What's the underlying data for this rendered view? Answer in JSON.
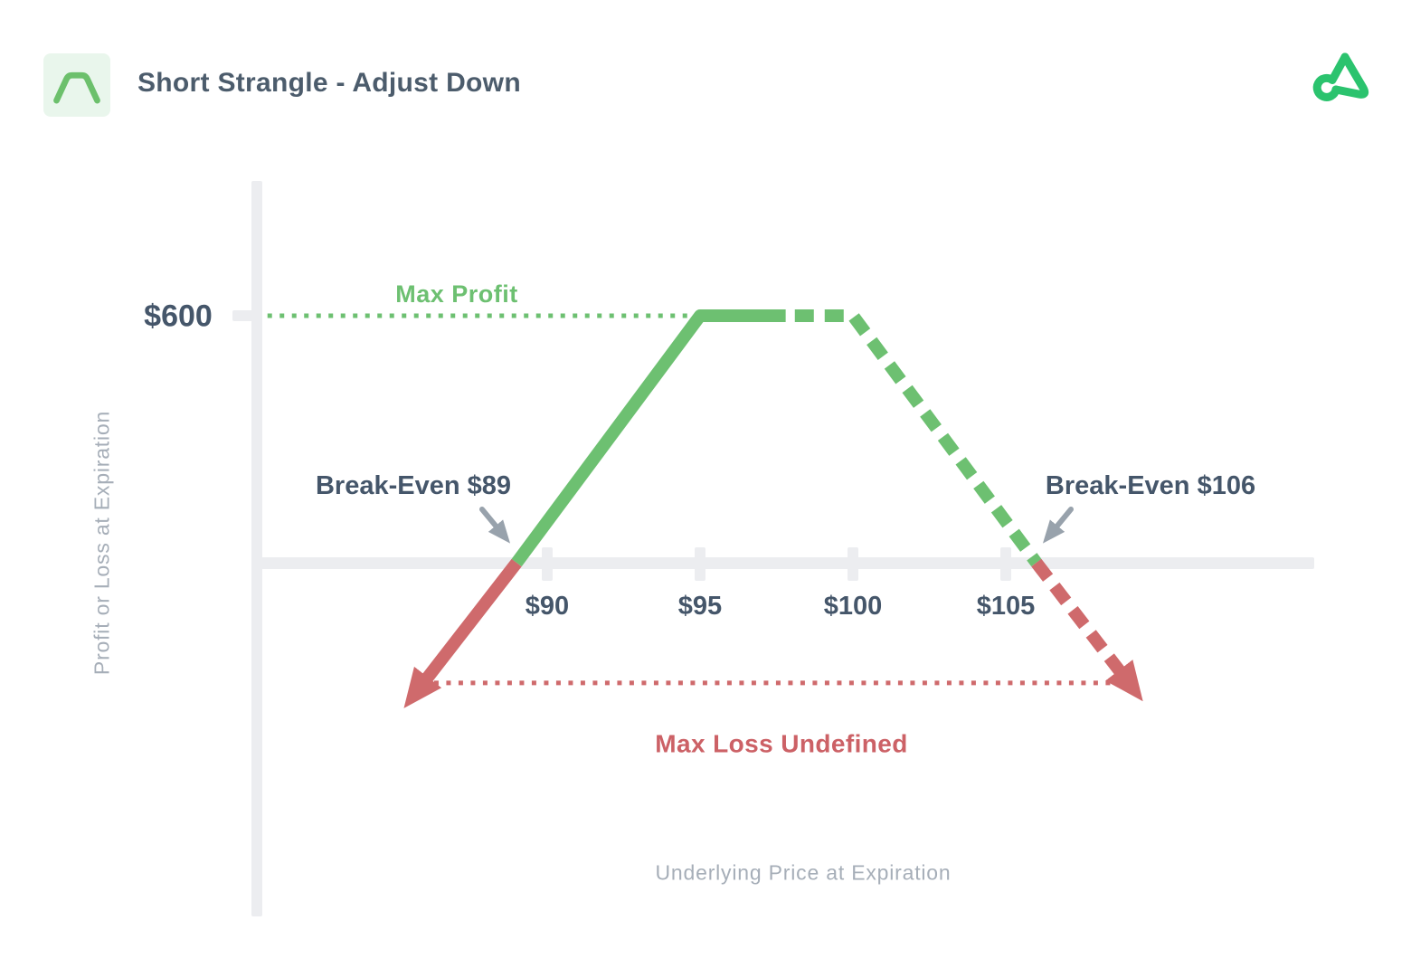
{
  "header": {
    "title": "Short Strangle - Adjust Down"
  },
  "icons": {
    "header_icon": "short-strangle-payoff-icon",
    "logo": "option-alpha-logo"
  },
  "colors": {
    "green": "#6dc071",
    "red": "#cf6a6c",
    "red_text": "#cc6166",
    "navy": "#45566a",
    "gray_text": "#a6aeb8",
    "axis_gray": "#ecedf0",
    "arrow_gray": "#98a2ac",
    "icon_bg": "#e9f6ec",
    "logo_green": "#2bc36e"
  },
  "chart_data": {
    "type": "line",
    "title": "Short Strangle - Adjust Down",
    "xlabel": "Underlying Price at Expiration",
    "ylabel": "Profit or Loss at Expiration",
    "legend": "none",
    "grid": false,
    "max_profit": 600,
    "break_evens": [
      89,
      106
    ],
    "max_loss": "Undefined",
    "flat_top_range": [
      95,
      100
    ],
    "x_ticks": [
      {
        "label": "$90",
        "price": 90
      },
      {
        "label": "$95",
        "price": 95
      },
      {
        "label": "$100",
        "price": 100
      },
      {
        "label": "$105",
        "price": 105
      }
    ],
    "y_ticks": [
      {
        "label": "$600",
        "value": 600
      }
    ],
    "segments": [
      {
        "id": "loss-left",
        "style": "solid",
        "color": "red",
        "arrow_end": true,
        "points": [
          [
            89,
            0
          ],
          [
            85.9,
            -297
          ]
        ]
      },
      {
        "id": "profit-left",
        "style": "solid",
        "color": "green",
        "arrow_end": false,
        "points": [
          [
            89,
            0
          ],
          [
            95,
            600
          ],
          [
            97.8,
            600
          ]
        ]
      },
      {
        "id": "profit-right",
        "style": "dashed",
        "color": "green",
        "arrow_end": false,
        "points": [
          [
            98.1,
            600
          ],
          [
            100,
            600
          ],
          [
            106,
            0
          ]
        ]
      },
      {
        "id": "loss-right",
        "style": "dashed",
        "color": "red",
        "arrow_end": true,
        "points": [
          [
            106,
            0
          ],
          [
            108.9,
            -280
          ]
        ]
      }
    ],
    "reference_lines": [
      {
        "id": "max-profit-level",
        "style": "dotted",
        "color": "green",
        "points": [
          [
            80.85,
            600
          ],
          [
            94.85,
            600
          ]
        ]
      },
      {
        "id": "max-loss-span",
        "style": "dotted",
        "color": "red",
        "points": [
          [
            85.9,
            -292
          ],
          [
            109.3,
            -292
          ]
        ]
      }
    ],
    "annotations": {
      "max_profit_label": "Max Profit",
      "break_even_left_label": "Break-Even $89",
      "break_even_right_label": "Break-Even $106",
      "max_loss_label": "Max Loss Undefined"
    }
  }
}
